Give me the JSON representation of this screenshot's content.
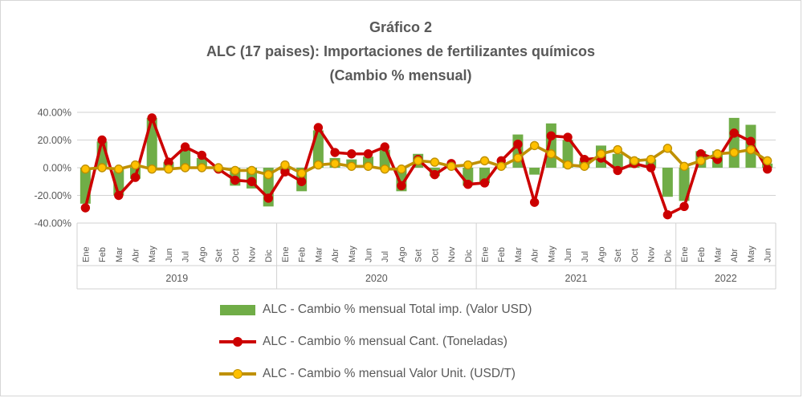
{
  "title": {
    "line1": "Gráfico 2",
    "line2": "ALC (17 paises): Importaciones de fertilizantes químicos",
    "line3": "(Cambio % mensual)"
  },
  "chart_data": {
    "type": "bar+line combo",
    "title": "Gráfico 2 - ALC (17 paises): Importaciones de fertilizantes químicos (Cambio % mensual)",
    "ylim": [
      -40,
      40
    ],
    "grid": true,
    "legend_position": "bottom",
    "axis_color": "#d2d2d2",
    "label_color": "#595959",
    "yticks": [
      {
        "label": "40.00%",
        "value": 40
      },
      {
        "label": "20.00%",
        "value": 20
      },
      {
        "label": "0.00%",
        "value": 0
      },
      {
        "label": "-20.00%",
        "value": -20
      },
      {
        "label": "-40.00%",
        "value": -40
      }
    ],
    "groups": [
      {
        "year": "2019",
        "months": [
          "Ene",
          "Feb",
          "Mar",
          "Abr",
          "May",
          "Jun",
          "Jul",
          "Ago",
          "Set",
          "Oct",
          "Nov",
          "Dic"
        ]
      },
      {
        "year": "2020",
        "months": [
          "Ene",
          "Feb",
          "Mar",
          "Abr",
          "May",
          "Jun",
          "Jul",
          "Ago",
          "Set",
          "Oct",
          "Nov",
          "Dic"
        ]
      },
      {
        "year": "2021",
        "months": [
          "Ene",
          "Feb",
          "Mar",
          "Abr",
          "May",
          "Jun",
          "Jul",
          "Ago",
          "Set",
          "Oct",
          "Nov",
          "Dic"
        ]
      },
      {
        "year": "2022",
        "months": [
          "Ene",
          "Feb",
          "Mar",
          "Abr",
          "May",
          "Jun"
        ]
      }
    ],
    "series": [
      {
        "name": "ALC - Cambio % mensual Total imp. (Valor USD)",
        "type": "bar",
        "color": "#70AD47",
        "values": [
          -26,
          19,
          -20,
          -8,
          36,
          4,
          13,
          7,
          -2,
          -13,
          -15,
          -28,
          -2,
          -17,
          27,
          7,
          6,
          8,
          13,
          -17,
          10,
          -6,
          2,
          -13,
          -11,
          3,
          24,
          -5,
          32,
          20,
          5,
          16,
          10,
          7,
          6,
          -21,
          -24,
          12,
          12,
          36,
          31,
          3
        ]
      },
      {
        "name": "ALC - Cambio % mensual Cant. (Toneladas)",
        "type": "line",
        "color": "#CC0000",
        "marker_color": "#CC0000",
        "values": [
          -29,
          20,
          -20,
          -7,
          36,
          4,
          15,
          9,
          -1,
          -9,
          -10,
          -22,
          -3,
          -10,
          29,
          11,
          10,
          10,
          15,
          -13,
          6,
          -5,
          3,
          -12,
          -11,
          5,
          17,
          -25,
          23,
          22,
          6,
          7,
          -2,
          3,
          0,
          -34,
          -28,
          10,
          6,
          25,
          19,
          -1
        ]
      },
      {
        "name": "ALC - Cambio % mensual Valor Unit. (USD/T)",
        "type": "line",
        "color": "#BF9000",
        "marker_color": "#FFC000",
        "values": [
          -1,
          0,
          -1,
          2,
          -1,
          -1,
          0,
          0,
          0,
          -2,
          -2,
          -5,
          2,
          -4,
          2,
          3,
          1,
          1,
          -1,
          -1,
          5,
          4,
          1,
          2,
          5,
          1,
          7,
          16,
          10,
          2,
          1,
          10,
          13,
          5,
          6,
          14,
          1,
          5,
          10,
          11,
          13,
          5
        ]
      }
    ]
  }
}
